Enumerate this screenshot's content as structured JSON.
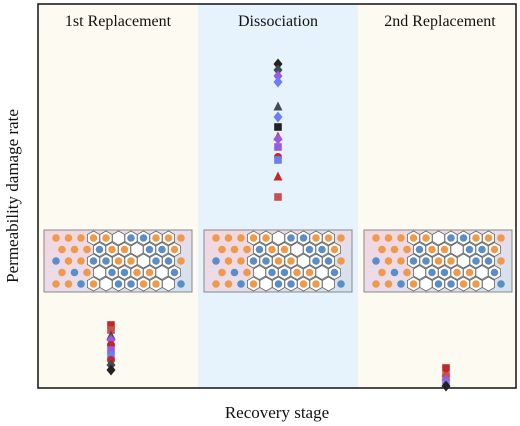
{
  "panels": [
    {
      "title": "1st Replacement"
    },
    {
      "title": "Dissociation"
    },
    {
      "title": "2nd Replacement"
    }
  ],
  "y_axis_label": "Permeability damage rate",
  "x_axis_label": "Recovery stage"
}
